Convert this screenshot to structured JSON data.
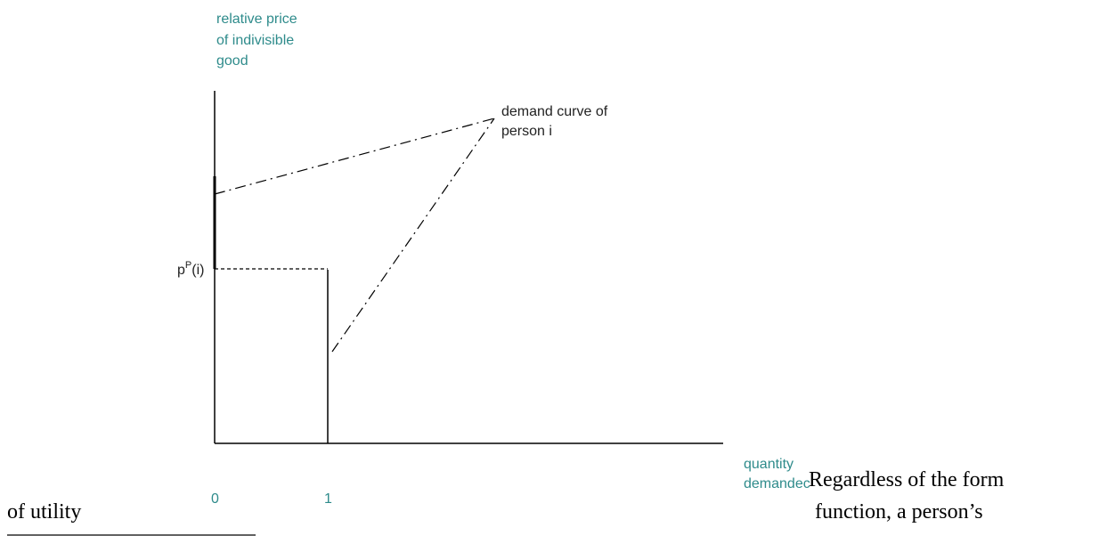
{
  "figure": {
    "y_axis_label": [
      "relative price",
      "of indivisible",
      "good"
    ],
    "curve_label": [
      "demand curve of",
      "person i"
    ],
    "price_label": {
      "base": "p",
      "superscript": "P",
      "suffix": "(i)"
    },
    "x_axis_label": [
      "quantity",
      "demandec"
    ],
    "x_ticks": [
      "0",
      "1"
    ]
  },
  "body_text": {
    "right_lines": [
      "Regardless of the form",
      "function, a person’s"
    ],
    "left_line": "of utility"
  }
}
